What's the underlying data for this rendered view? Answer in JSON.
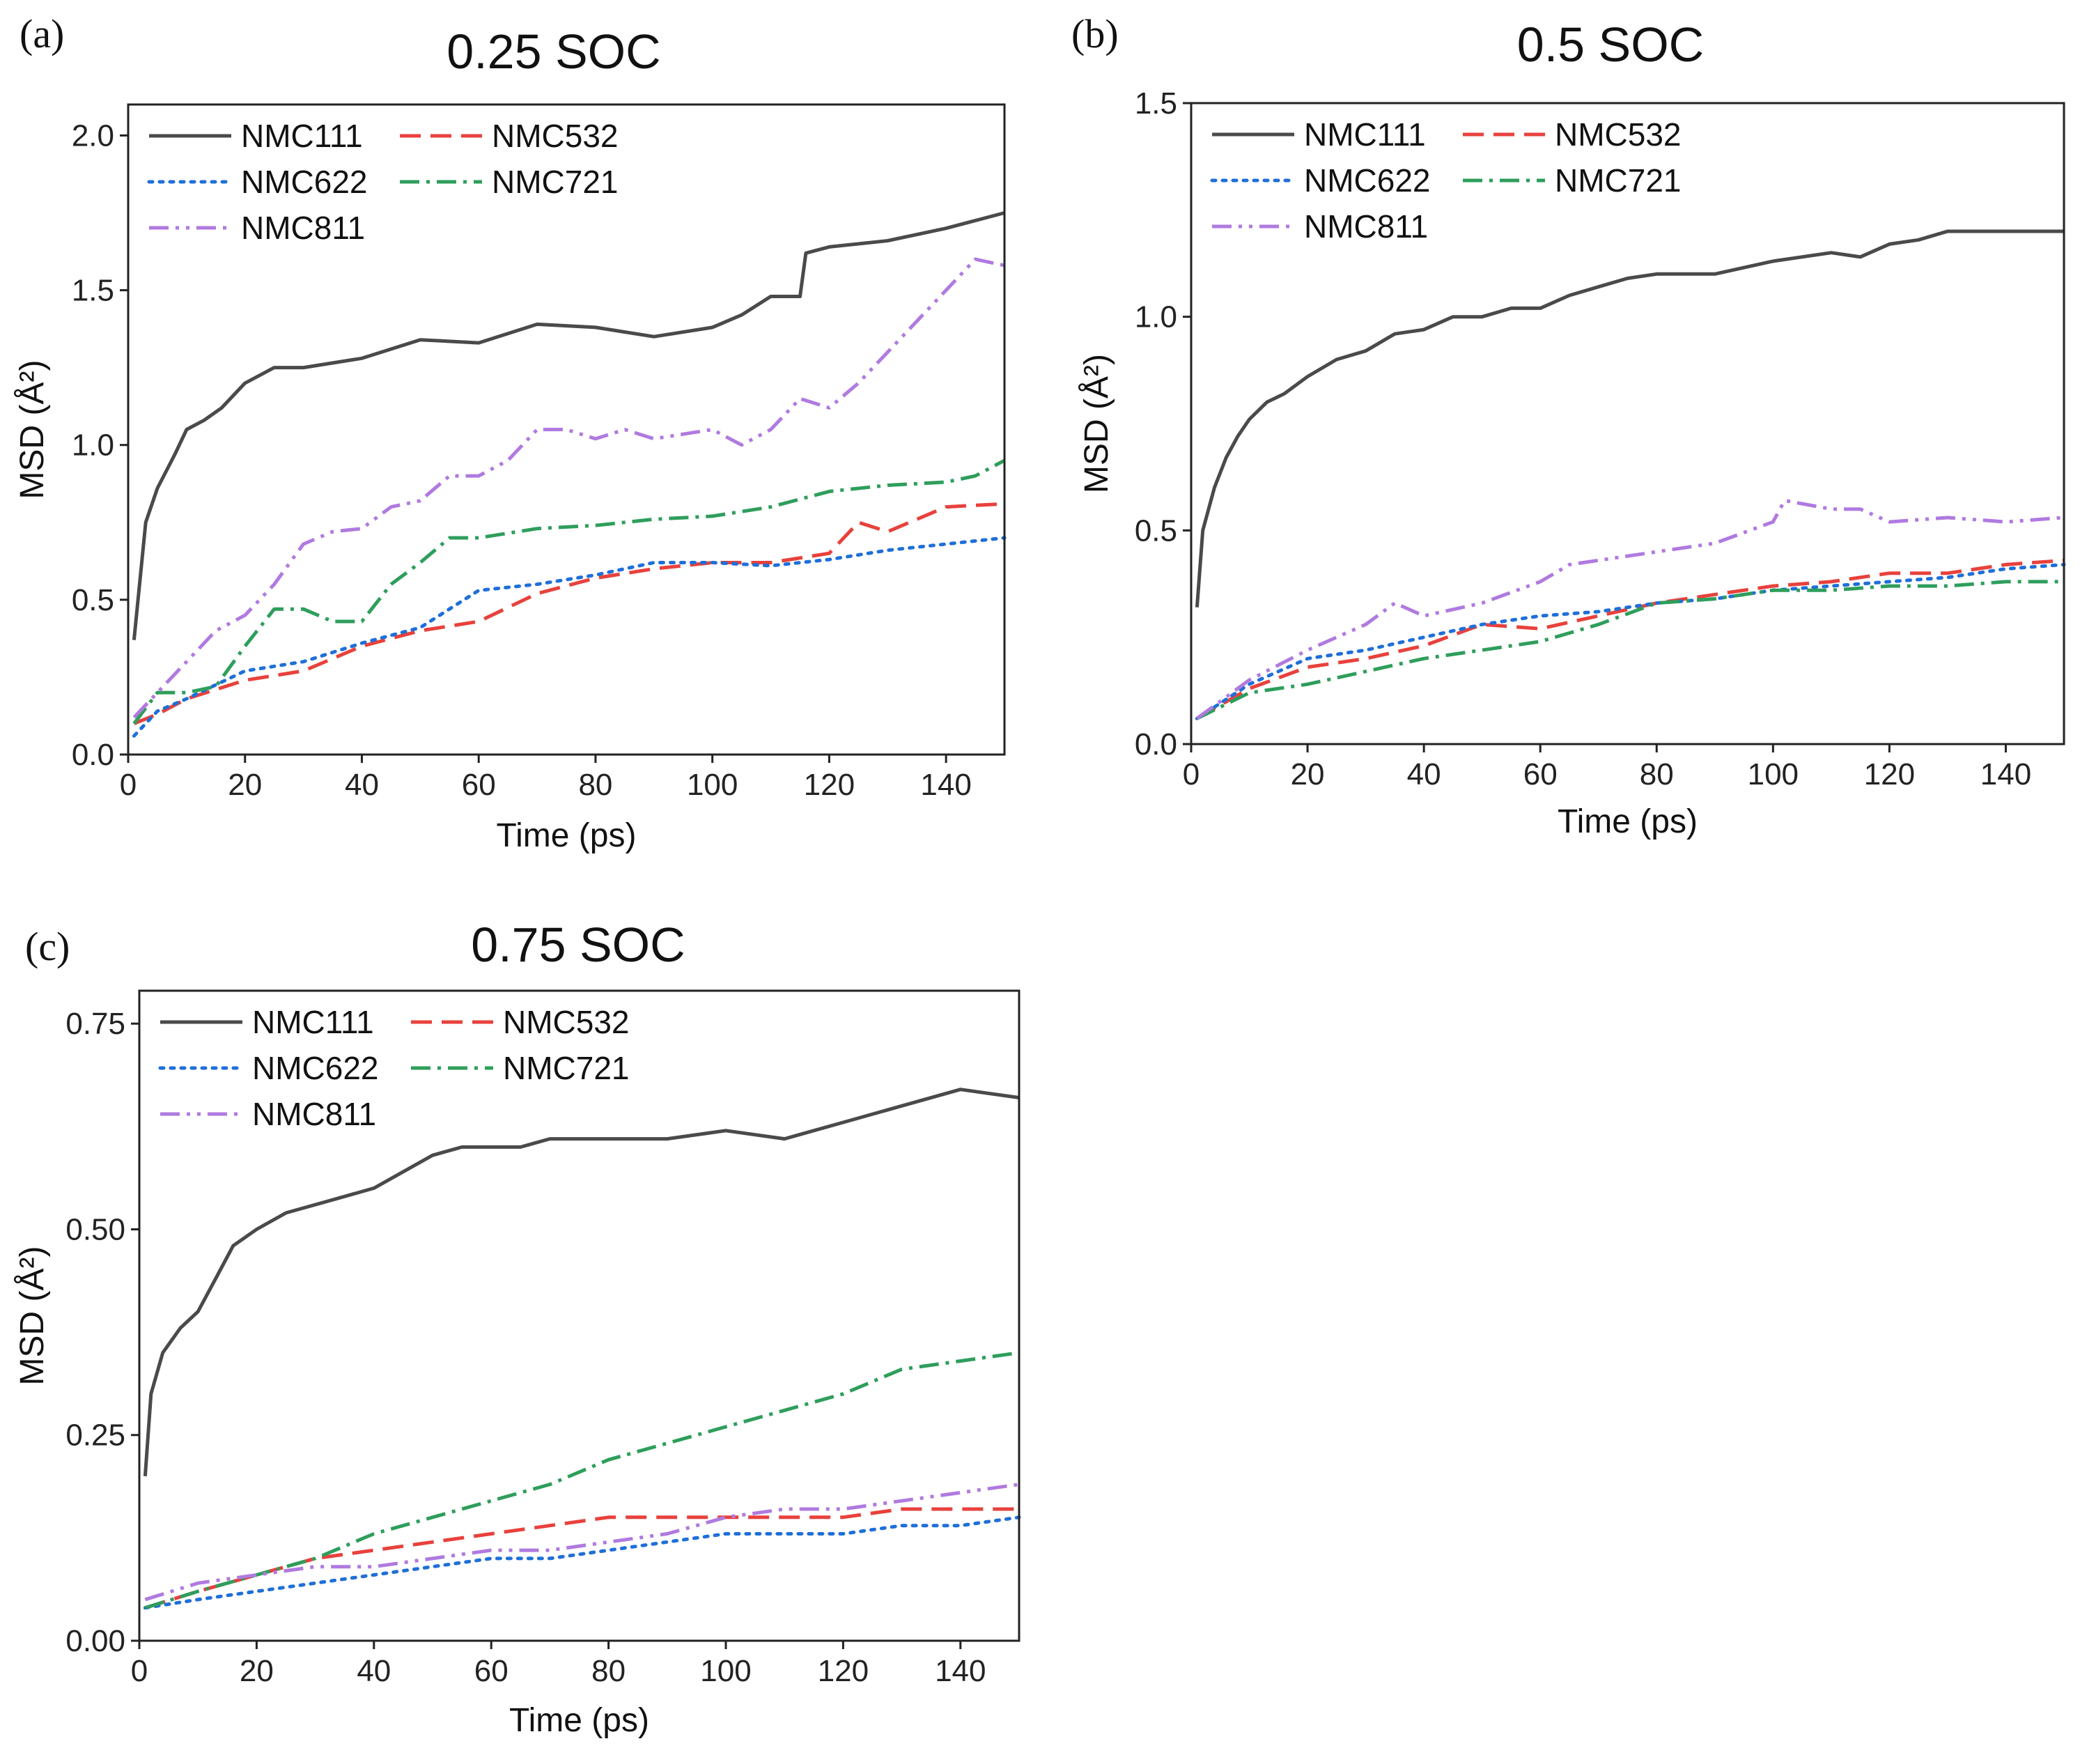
{
  "figure": {
    "panels": [
      {
        "label": "(a)",
        "title": "0.25 SOC"
      },
      {
        "label": "(b)",
        "title": "0.5 SOC"
      },
      {
        "label": "(c)",
        "title": "0.75 SOC"
      }
    ]
  },
  "chart_data": [
    {
      "type": "line",
      "panel": "(a)",
      "title": "0.25 SOC",
      "xlabel": "Time (ps)",
      "ylabel": "MSD (Å²)",
      "xlim": [
        0,
        150
      ],
      "ylim": [
        0,
        2.1
      ],
      "xticks": [
        0,
        20,
        40,
        60,
        80,
        100,
        120,
        140
      ],
      "yticks": [
        0.0,
        0.5,
        1.0,
        1.5,
        2.0
      ],
      "ytick_labels": [
        "0.0",
        "0.5",
        "1.0",
        "1.5",
        "2.0"
      ],
      "legend": "top-left",
      "series": [
        {
          "name": "NMC111",
          "color": "#4a4a4a",
          "dash": "solid",
          "x": [
            1,
            3,
            5,
            8,
            10,
            13,
            16,
            20,
            25,
            30,
            40,
            50,
            60,
            70,
            80,
            90,
            100,
            105,
            110,
            115,
            116,
            120,
            130,
            140,
            150
          ],
          "y": [
            0.37,
            0.75,
            0.86,
            0.97,
            1.05,
            1.08,
            1.12,
            1.2,
            1.25,
            1.25,
            1.28,
            1.34,
            1.33,
            1.39,
            1.38,
            1.35,
            1.38,
            1.42,
            1.48,
            1.48,
            1.62,
            1.64,
            1.66,
            1.7,
            1.75
          ]
        },
        {
          "name": "NMC532",
          "color": "#e8413c",
          "dash": "long-dash",
          "x": [
            1,
            5,
            10,
            20,
            30,
            40,
            50,
            60,
            70,
            80,
            90,
            100,
            110,
            120,
            125,
            130,
            140,
            150
          ],
          "y": [
            0.1,
            0.13,
            0.18,
            0.24,
            0.27,
            0.35,
            0.4,
            0.43,
            0.52,
            0.57,
            0.6,
            0.62,
            0.62,
            0.65,
            0.75,
            0.72,
            0.8,
            0.81
          ]
        },
        {
          "name": "NMC622",
          "color": "#1f6fd8",
          "dash": "dotted",
          "x": [
            1,
            5,
            10,
            20,
            30,
            40,
            50,
            60,
            70,
            80,
            90,
            100,
            110,
            120,
            130,
            140,
            150
          ],
          "y": [
            0.06,
            0.14,
            0.18,
            0.27,
            0.3,
            0.36,
            0.41,
            0.53,
            0.55,
            0.58,
            0.62,
            0.62,
            0.61,
            0.63,
            0.66,
            0.68,
            0.7
          ]
        },
        {
          "name": "NMC721",
          "color": "#2e9e5b",
          "dash": "dash-dot",
          "x": [
            1,
            5,
            10,
            15,
            20,
            25,
            30,
            35,
            40,
            45,
            50,
            55,
            60,
            70,
            80,
            90,
            100,
            110,
            120,
            130,
            140,
            145,
            150
          ],
          "y": [
            0.1,
            0.2,
            0.2,
            0.22,
            0.35,
            0.47,
            0.47,
            0.43,
            0.43,
            0.55,
            0.62,
            0.7,
            0.7,
            0.73,
            0.74,
            0.76,
            0.77,
            0.8,
            0.85,
            0.87,
            0.88,
            0.9,
            0.95
          ]
        },
        {
          "name": "NMC811",
          "color": "#b07ae0",
          "dash": "dash-dot-dot",
          "x": [
            1,
            5,
            10,
            15,
            20,
            25,
            30,
            35,
            40,
            45,
            50,
            55,
            60,
            65,
            70,
            75,
            80,
            85,
            90,
            100,
            105,
            110,
            115,
            120,
            125,
            130,
            135,
            140,
            145,
            150
          ],
          "y": [
            0.12,
            0.2,
            0.3,
            0.4,
            0.45,
            0.55,
            0.68,
            0.72,
            0.73,
            0.8,
            0.82,
            0.9,
            0.9,
            0.95,
            1.05,
            1.05,
            1.02,
            1.05,
            1.02,
            1.05,
            1.0,
            1.05,
            1.15,
            1.12,
            1.2,
            1.3,
            1.4,
            1.5,
            1.6,
            1.58
          ]
        }
      ]
    },
    {
      "type": "line",
      "panel": "(b)",
      "title": "0.5 SOC",
      "xlabel": "Time (ps)",
      "ylabel": "MSD (Å²)",
      "xlim": [
        0,
        150
      ],
      "ylim": [
        0,
        1.5
      ],
      "xticks": [
        0,
        20,
        40,
        60,
        80,
        100,
        120,
        140
      ],
      "yticks": [
        0.0,
        0.5,
        1.0,
        1.5
      ],
      "ytick_labels": [
        "0.0",
        "0.5",
        "1.0",
        "1.5"
      ],
      "legend": "top-left",
      "series": [
        {
          "name": "NMC111",
          "color": "#4a4a4a",
          "dash": "solid",
          "x": [
            1,
            2,
            4,
            6,
            8,
            10,
            13,
            16,
            20,
            25,
            30,
            35,
            40,
            45,
            50,
            55,
            60,
            65,
            70,
            75,
            80,
            90,
            100,
            110,
            115,
            120,
            125,
            130,
            140,
            150
          ],
          "y": [
            0.32,
            0.5,
            0.6,
            0.67,
            0.72,
            0.76,
            0.8,
            0.82,
            0.86,
            0.9,
            0.92,
            0.96,
            0.97,
            1.0,
            1.0,
            1.02,
            1.02,
            1.05,
            1.07,
            1.09,
            1.1,
            1.1,
            1.13,
            1.15,
            1.14,
            1.17,
            1.18,
            1.2,
            1.2,
            1.2
          ]
        },
        {
          "name": "NMC532",
          "color": "#e8413c",
          "dash": "long-dash",
          "x": [
            1,
            10,
            20,
            30,
            40,
            50,
            60,
            70,
            80,
            90,
            100,
            110,
            120,
            130,
            140,
            150
          ],
          "y": [
            0.06,
            0.13,
            0.18,
            0.2,
            0.23,
            0.28,
            0.27,
            0.3,
            0.33,
            0.35,
            0.37,
            0.38,
            0.4,
            0.4,
            0.42,
            0.43
          ]
        },
        {
          "name": "NMC622",
          "color": "#1f6fd8",
          "dash": "dotted",
          "x": [
            1,
            10,
            20,
            30,
            40,
            50,
            60,
            70,
            80,
            90,
            100,
            110,
            120,
            130,
            140,
            150
          ],
          "y": [
            0.06,
            0.14,
            0.2,
            0.22,
            0.25,
            0.28,
            0.3,
            0.31,
            0.33,
            0.34,
            0.36,
            0.37,
            0.38,
            0.39,
            0.41,
            0.42
          ]
        },
        {
          "name": "NMC721",
          "color": "#2e9e5b",
          "dash": "dash-dot",
          "x": [
            1,
            10,
            20,
            30,
            40,
            50,
            60,
            70,
            80,
            90,
            100,
            110,
            120,
            130,
            140,
            150
          ],
          "y": [
            0.06,
            0.12,
            0.14,
            0.17,
            0.2,
            0.22,
            0.24,
            0.28,
            0.33,
            0.34,
            0.36,
            0.36,
            0.37,
            0.37,
            0.38,
            0.38
          ]
        },
        {
          "name": "NMC811",
          "color": "#b07ae0",
          "dash": "dash-dot-dot",
          "x": [
            1,
            10,
            20,
            30,
            35,
            40,
            50,
            60,
            65,
            70,
            80,
            90,
            100,
            102,
            110,
            115,
            120,
            130,
            140,
            150
          ],
          "y": [
            0.06,
            0.15,
            0.22,
            0.28,
            0.33,
            0.3,
            0.33,
            0.38,
            0.42,
            0.43,
            0.45,
            0.47,
            0.52,
            0.57,
            0.55,
            0.55,
            0.52,
            0.53,
            0.52,
            0.53
          ]
        }
      ]
    },
    {
      "type": "line",
      "panel": "(c)",
      "title": "0.75 SOC",
      "xlabel": "Time (ps)",
      "ylabel": "MSD (Å²)",
      "xlim": [
        0,
        150
      ],
      "ylim": [
        0,
        0.79
      ],
      "xticks": [
        0,
        20,
        40,
        60,
        80,
        100,
        120,
        140
      ],
      "yticks": [
        0.0,
        0.25,
        0.5,
        0.75
      ],
      "ytick_labels": [
        "0.00",
        "0.25",
        "0.50",
        "0.75"
      ],
      "legend": "top-left",
      "series": [
        {
          "name": "NMC111",
          "color": "#4a4a4a",
          "dash": "solid",
          "x": [
            1,
            2,
            4,
            7,
            10,
            13,
            16,
            20,
            25,
            30,
            35,
            40,
            45,
            50,
            55,
            60,
            65,
            70,
            75,
            80,
            90,
            100,
            110,
            120,
            130,
            140,
            150
          ],
          "y": [
            0.2,
            0.3,
            0.35,
            0.38,
            0.4,
            0.44,
            0.48,
            0.5,
            0.52,
            0.53,
            0.54,
            0.55,
            0.57,
            0.59,
            0.6,
            0.6,
            0.6,
            0.61,
            0.61,
            0.61,
            0.61,
            0.62,
            0.61,
            0.63,
            0.65,
            0.67,
            0.66
          ]
        },
        {
          "name": "NMC532",
          "color": "#e8413c",
          "dash": "long-dash",
          "x": [
            1,
            10,
            20,
            30,
            40,
            50,
            60,
            70,
            80,
            90,
            100,
            110,
            120,
            130,
            140,
            150
          ],
          "y": [
            0.04,
            0.06,
            0.08,
            0.1,
            0.11,
            0.12,
            0.13,
            0.14,
            0.15,
            0.15,
            0.15,
            0.15,
            0.15,
            0.16,
            0.16,
            0.16
          ]
        },
        {
          "name": "NMC622",
          "color": "#1f6fd8",
          "dash": "dotted",
          "x": [
            1,
            10,
            20,
            30,
            40,
            50,
            60,
            70,
            80,
            90,
            100,
            110,
            120,
            130,
            140,
            150
          ],
          "y": [
            0.04,
            0.05,
            0.06,
            0.07,
            0.08,
            0.09,
            0.1,
            0.1,
            0.11,
            0.12,
            0.13,
            0.13,
            0.13,
            0.14,
            0.14,
            0.15
          ]
        },
        {
          "name": "NMC721",
          "color": "#2e9e5b",
          "dash": "dash-dot",
          "x": [
            1,
            10,
            20,
            30,
            40,
            50,
            60,
            70,
            80,
            90,
            100,
            110,
            120,
            130,
            140,
            150
          ],
          "y": [
            0.04,
            0.06,
            0.08,
            0.1,
            0.13,
            0.15,
            0.17,
            0.19,
            0.22,
            0.24,
            0.26,
            0.28,
            0.3,
            0.33,
            0.34,
            0.35
          ]
        },
        {
          "name": "NMC811",
          "color": "#b07ae0",
          "dash": "dash-dot-dot",
          "x": [
            1,
            10,
            20,
            30,
            40,
            50,
            60,
            70,
            80,
            90,
            100,
            110,
            120,
            130,
            140,
            150
          ],
          "y": [
            0.05,
            0.07,
            0.08,
            0.09,
            0.09,
            0.1,
            0.11,
            0.11,
            0.12,
            0.13,
            0.15,
            0.16,
            0.16,
            0.17,
            0.18,
            0.19
          ]
        }
      ]
    }
  ]
}
